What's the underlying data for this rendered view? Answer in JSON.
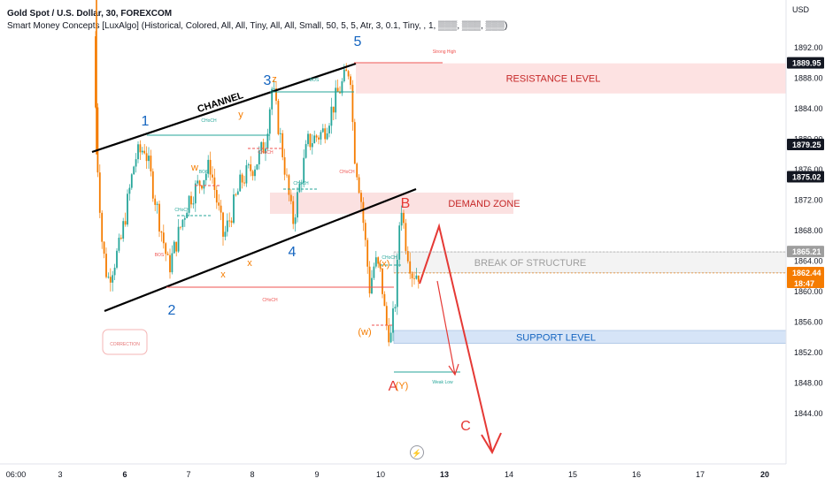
{
  "header": {
    "title": "Gold Spot / U.S. Dollar, 30, FOREXCOM",
    "indicator": "Smart Money Concepts [LuxAlgo] (Historical, Colored, All, All, Tiny, All, All, Small, 50, 5, 5, Atr, 3, 0.1, Tiny, , 1, ▒▒▒, ▒▒▒, ▒▒▒)"
  },
  "axis": {
    "currency": "USD"
  },
  "colors": {
    "up": "#26a69a",
    "down": "#ef5350",
    "orange": "#f57c00",
    "blue": "#1565c0",
    "red": "#e53935"
  },
  "chart_data": {
    "type": "candlestick",
    "ylim": [
      1842.2,
      1894.6
    ],
    "y_ticks": [
      1892.0,
      1888.0,
      1884.0,
      1880.0,
      1876.0,
      1872.0,
      1868.0,
      1864.0,
      1860.0,
      1856.0,
      1852.0,
      1848.0,
      1844.0
    ],
    "x_ticks": [
      "06:00",
      "3",
      "6",
      "7",
      "8",
      "9",
      "10",
      "13",
      "14",
      "15",
      "16",
      "17",
      "20"
    ],
    "price_tags": [
      {
        "text": "1889.95",
        "value": 1889.95,
        "style": "dark"
      },
      {
        "text": "1879.25",
        "value": 1879.25,
        "style": "dark"
      },
      {
        "text": "1875.02",
        "value": 1875.02,
        "style": "dark"
      },
      {
        "text": "1865.21",
        "value": 1865.21,
        "style": "gray"
      },
      {
        "text": "1862.44",
        "value": 1862.44,
        "style": "orange",
        "countdown": "18:47"
      }
    ],
    "zones": [
      {
        "label": "RESISTANCE LEVEL",
        "top": 1889.95,
        "bottom": 1886.0,
        "color": "pink"
      },
      {
        "label": "DEMAND ZONE",
        "top": 1873.0,
        "bottom": 1870.2,
        "color": "pink"
      },
      {
        "label": "BREAK OF STRUCTURE",
        "top": 1865.21,
        "bottom": 1862.5,
        "color": "gray"
      },
      {
        "label": "SUPPORT LEVEL",
        "top": 1854.9,
        "bottom": 1853.2,
        "color": "blue"
      }
    ],
    "annotations": {
      "channel": "CHANNEL",
      "correction": "CORRECTION",
      "strong_high": "Strong High",
      "weak_low": "Weak Low",
      "waves": [
        "1",
        "2",
        "3",
        "4",
        "5"
      ],
      "abc": [
        "A",
        "B",
        "C"
      ],
      "subwaves": [
        "w",
        "x",
        "y",
        "z",
        "x",
        "(x)",
        "(w)",
        "(Y)"
      ],
      "smc_labels": [
        "CHoCH",
        "BOS"
      ]
    },
    "logo_mark": "⚡"
  }
}
